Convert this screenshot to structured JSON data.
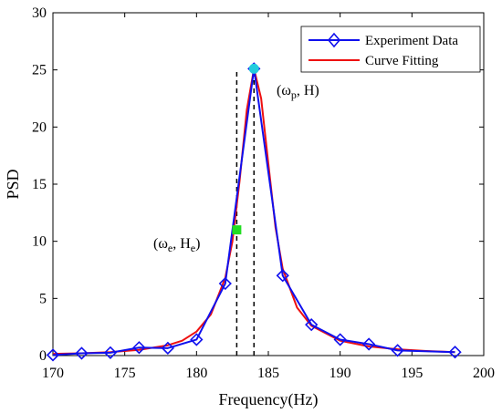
{
  "chart_data": {
    "type": "line",
    "title": "",
    "xlabel": "Frequency(Hz)",
    "ylabel": "PSD",
    "xlim": [
      170,
      200
    ],
    "ylim": [
      0,
      30
    ],
    "xticks": [
      170,
      175,
      180,
      185,
      190,
      195,
      200
    ],
    "yticks": [
      0,
      5,
      10,
      15,
      20,
      25,
      30
    ],
    "grid": false,
    "legend_position": "top-right",
    "series": [
      {
        "name": "Experiment Data",
        "style": "line-diamond-markers",
        "color": "#1010ee",
        "x": [
          170,
          172,
          174,
          176,
          178,
          180,
          182,
          184,
          186,
          188,
          190,
          192,
          194,
          198
        ],
        "y": [
          0.05,
          0.2,
          0.25,
          0.7,
          0.65,
          1.4,
          6.3,
          25.1,
          7.0,
          2.7,
          1.4,
          1.0,
          0.45,
          0.3
        ]
      },
      {
        "name": "Curve Fitting",
        "style": "line",
        "color": "#ee1010",
        "x": [
          170,
          172,
          174,
          176,
          178,
          179,
          180,
          181,
          182,
          182.5,
          183,
          183.5,
          184,
          184.5,
          185,
          185.5,
          186,
          187,
          188,
          190,
          192,
          194,
          196,
          198
        ],
        "y": [
          0.15,
          0.2,
          0.3,
          0.5,
          0.9,
          1.3,
          2.1,
          3.6,
          6.8,
          10.0,
          15.3,
          21.5,
          25.1,
          22.5,
          16.8,
          11.2,
          7.6,
          4.2,
          2.6,
          1.3,
          0.8,
          0.55,
          0.4,
          0.3
        ]
      }
    ],
    "points": [
      {
        "label_main": "ω",
        "label_sub": "p",
        "label_tail": ", H)",
        "x": 184,
        "y": 25.1,
        "color": "#22ccdd",
        "marker": "circle"
      },
      {
        "label_main": "ω",
        "label_sub": "e",
        "label_tail": ", H",
        "label_tail_sub": "e",
        "x": 182.8,
        "y": 11.0,
        "color": "#22dd22",
        "marker": "square"
      }
    ],
    "dashed_lines_x": [
      182.8,
      184
    ]
  }
}
